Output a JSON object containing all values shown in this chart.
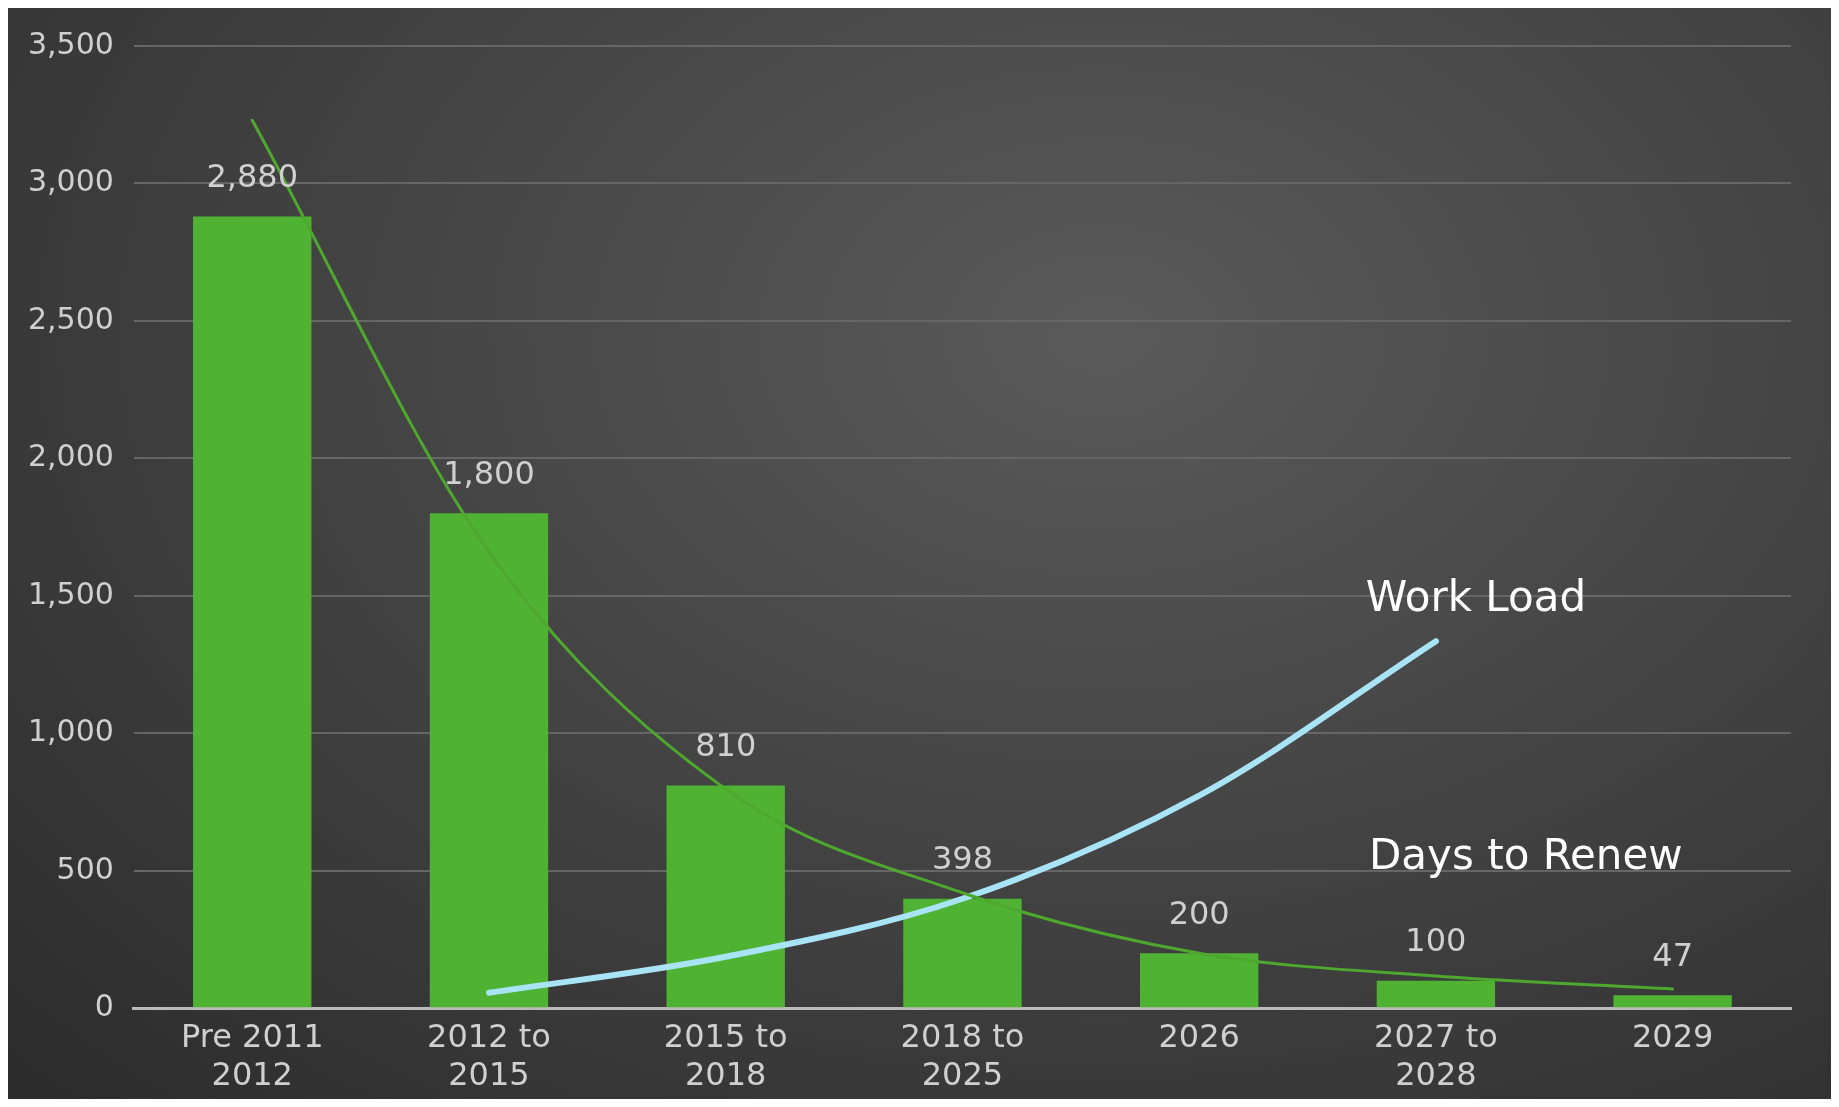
{
  "chart_data": {
    "type": "bar",
    "categories": [
      "Pre 2011\n2012",
      "2012 to\n2015",
      "2015 to\n2018",
      "2018 to\n2025",
      "2026",
      "2027 to\n2028",
      "2029"
    ],
    "series": [
      {
        "color": "#4fb233",
        "values": [
          2880,
          1800,
          810,
          398,
          200,
          100,
          47
        ],
        "value_labels": [
          "2,880",
          "1,800",
          "810",
          "398",
          "200",
          "100",
          "47"
        ]
      },
      {
        "type": "line",
        "name": "Days to Renew",
        "color": "#4fa82e",
        "values": [
          3230,
          1660,
          797,
          420,
          200,
          117,
          70
        ]
      },
      {
        "type": "line",
        "name": "Work Load",
        "color": "#a8e4f5",
        "values": [
          null,
          56,
          187,
          398,
          773,
          1335,
          null
        ]
      }
    ],
    "ylim": [
      0,
      3500
    ],
    "yticks": [
      0,
      500,
      {
        "value": 1000,
        "label": "1,000"
      },
      {
        "value": 1500,
        "label": "1,500"
      },
      {
        "value": 2000,
        "label": "2,000"
      },
      {
        "value": 2500,
        "label": "2,500"
      },
      {
        "value": 3000,
        "label": "3,000"
      },
      {
        "value": 3500,
        "label": "3,500"
      }
    ],
    "grid": "y",
    "legend": false,
    "marker": "none",
    "line_style": "solid"
  }
}
